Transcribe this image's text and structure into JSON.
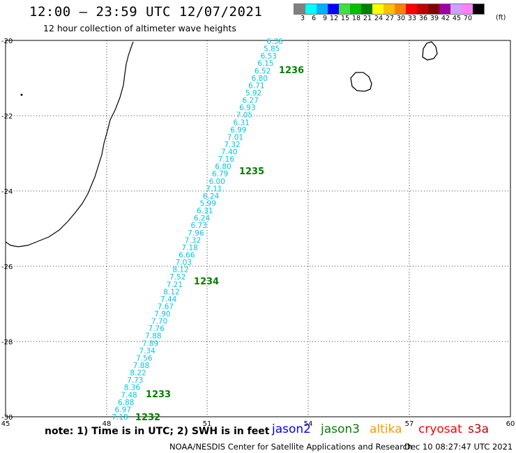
{
  "header": {
    "title": "12:00 – 23:59 UTC 12/07/2021",
    "subtitle": "12 hour collection of altimeter wave heights"
  },
  "legend": {
    "labels": [
      "3",
      "6",
      "9",
      "12",
      "15",
      "18",
      "21",
      "24",
      "27",
      "30",
      "33",
      "36",
      "39",
      "42",
      "45",
      "70"
    ],
    "colors": [
      "#808080",
      "#00ffff",
      "#00b0ff",
      "#0000ff",
      "#40e040",
      "#00c000",
      "#008000",
      "#ffff00",
      "#ffc000",
      "#ff8000",
      "#ff0000",
      "#c00000",
      "#800000",
      "#a000a0",
      "#d0a0ff",
      "#ff80ff",
      "#000000"
    ],
    "unit": "(ft)"
  },
  "map": {
    "lon_ticks": [
      "45",
      "48",
      "51",
      "54",
      "57",
      "60"
    ],
    "lat_ticks": [
      "-20",
      "-22",
      "-24",
      "-26",
      "-28",
      "-30"
    ],
    "grid_style": "dotted",
    "wave_values": [
      "6.36",
      "5.85",
      "6.53",
      "6.15",
      "6.52",
      "6.80",
      "6.71",
      "5.92",
      "6.27",
      "6.93",
      "7.05",
      "6.31",
      "6.99",
      "7.01",
      "7.32",
      "7.40",
      "7.16",
      "6.80",
      "6.79",
      "6.00",
      "7.11",
      "6.24",
      "5.99",
      "6.31",
      "6.24",
      "6.73",
      "7.96",
      "7.32",
      "7.18",
      "6.66",
      "7.03",
      "8.12",
      "7.52",
      "7.21",
      "8.12",
      "7.44",
      "7.67",
      "7.90",
      "7.70",
      "7.76",
      "7.88",
      "7.89",
      "7.34",
      "7.56",
      "7.88",
      "8.22",
      "7.73",
      "8.36",
      "7.48",
      "6.88",
      "6.97",
      "7.18"
    ],
    "wave_color": "#00c8e0",
    "time_labels": [
      "1236",
      "1235",
      "1234",
      "1233",
      "1232"
    ],
    "time_color": "#008000"
  },
  "footer": {
    "note": "note: 1) Time is in UTC; 2) SWH is in feet",
    "credit": "NOAA/NESDIS Center for Satellite Applications and Research",
    "timestamp": "Dec 10 08:27:47 UTC 2021",
    "satellites": [
      {
        "name": "jason2",
        "color": "#0000ff"
      },
      {
        "name": "jason3",
        "color": "#008000"
      },
      {
        "name": "altika",
        "color": "#ff9900"
      },
      {
        "name": "cryosat",
        "color": "#ff0000"
      },
      {
        "name": "s3a",
        "color": "#c00000"
      }
    ]
  }
}
